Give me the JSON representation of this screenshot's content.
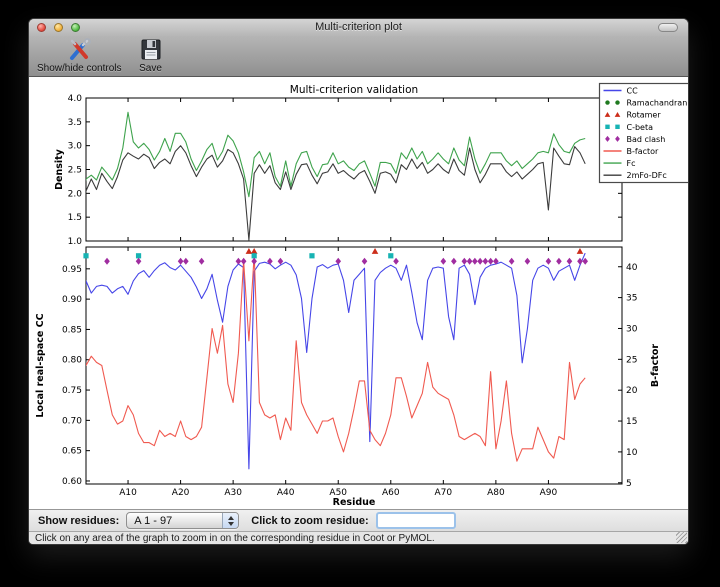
{
  "window": {
    "title": "Multi-criterion plot"
  },
  "toolbar": {
    "items": [
      {
        "label": "Show/hide controls",
        "icon": "tools-icon"
      },
      {
        "label": "Save",
        "icon": "save-icon"
      }
    ]
  },
  "controls": {
    "show_residues_label": "Show residues:",
    "range_selector_value": "A  1 - 97",
    "zoom_label": "Click to zoom residue:",
    "zoom_input_value": ""
  },
  "status": {
    "text": "Click on any area of the graph to zoom in on the corresponding residue in Coot or PyMOL."
  },
  "chart_data": {
    "type": "line",
    "title": "Multi-criterion validation",
    "x": {
      "label": "Residue",
      "lim": [
        2,
        104
      ],
      "ticks": [
        [
          10,
          "A10"
        ],
        [
          20,
          "A20"
        ],
        [
          30,
          "A30"
        ],
        [
          40,
          "A40"
        ],
        [
          50,
          "A50"
        ],
        [
          60,
          "A60"
        ],
        [
          70,
          "A70"
        ],
        [
          80,
          "A80"
        ],
        [
          90,
          "A90"
        ]
      ],
      "start_residue": 1
    },
    "top_plot": {
      "ylabel": "Density",
      "ylim": [
        1.0,
        4.0
      ],
      "yticks": [
        [
          1.0,
          "1.0"
        ],
        [
          1.5,
          "1.5"
        ],
        [
          2.0,
          "2.0"
        ],
        [
          2.5,
          "2.5"
        ],
        [
          3.0,
          "3.0"
        ],
        [
          3.5,
          "3.5"
        ],
        [
          4.0,
          "4.0"
        ]
      ],
      "series": [
        {
          "name": "Fc",
          "color": "#3fa34d",
          "values": [
            1.75,
            2.3,
            2.38,
            2.28,
            2.55,
            2.42,
            2.28,
            2.52,
            2.95,
            3.7,
            3.08,
            2.95,
            3.05,
            2.92,
            2.7,
            2.88,
            3.15,
            2.88,
            3.26,
            3.26,
            3.08,
            2.72,
            2.48,
            2.68,
            2.92,
            3.05,
            2.7,
            2.88,
            3.22,
            3.1,
            2.85,
            2.45,
            1.93,
            2.75,
            2.88,
            2.62,
            2.85,
            2.35,
            2.15,
            2.68,
            2.15,
            2.62,
            2.85,
            2.88,
            2.55,
            2.35,
            2.6,
            2.62,
            2.85,
            2.62,
            2.68,
            2.55,
            2.48,
            2.62,
            2.68,
            2.42,
            2.15,
            2.65,
            2.65,
            2.62,
            2.42,
            2.85,
            2.72,
            2.95,
            2.72,
            2.88,
            2.62,
            2.72,
            2.85,
            2.72,
            2.62,
            2.95,
            2.7,
            2.58,
            3.18,
            2.72,
            2.42,
            2.62,
            2.85,
            2.85,
            2.85,
            2.68,
            2.58,
            2.68,
            2.52,
            2.62,
            2.72,
            2.85,
            2.88,
            2.85,
            3.25,
            3.02,
            2.88,
            2.85,
            3.05,
            3.12,
            3.15
          ]
        },
        {
          "name": "2mFo-DFc",
          "color": "#3c3c3c",
          "values": [
            1.3,
            2.05,
            2.3,
            2.08,
            2.42,
            2.25,
            2.1,
            2.35,
            2.7,
            2.85,
            2.78,
            2.72,
            2.82,
            2.75,
            2.52,
            2.65,
            2.72,
            2.62,
            2.88,
            3.0,
            2.85,
            2.58,
            2.35,
            2.55,
            2.72,
            2.8,
            2.55,
            2.68,
            2.92,
            2.85,
            2.62,
            2.3,
            1.02,
            2.42,
            2.6,
            2.42,
            2.58,
            2.22,
            2.08,
            2.45,
            2.08,
            2.4,
            2.6,
            2.62,
            2.38,
            2.2,
            2.42,
            2.45,
            2.62,
            2.42,
            2.48,
            2.38,
            2.3,
            2.42,
            2.48,
            2.25,
            2.0,
            2.42,
            2.45,
            2.4,
            2.22,
            2.6,
            2.5,
            2.72,
            2.52,
            2.65,
            2.42,
            2.5,
            2.62,
            2.5,
            2.42,
            2.72,
            2.48,
            2.38,
            2.95,
            2.5,
            2.22,
            2.4,
            2.62,
            2.62,
            2.62,
            2.45,
            2.35,
            2.45,
            2.3,
            2.4,
            2.5,
            2.62,
            2.65,
            1.65,
            2.95,
            2.78,
            2.62,
            2.6,
            2.98,
            2.85,
            2.62
          ]
        }
      ]
    },
    "bottom_plot": {
      "ylabel_left": "Local real-space CC",
      "ylim_left": [
        0.595,
        0.986
      ],
      "yticks_left": [
        [
          0.6,
          "0.60"
        ],
        [
          0.65,
          "0.65"
        ],
        [
          0.7,
          "0.70"
        ],
        [
          0.75,
          "0.75"
        ],
        [
          0.8,
          "0.80"
        ],
        [
          0.85,
          "0.85"
        ],
        [
          0.9,
          "0.90"
        ],
        [
          0.95,
          "0.95"
        ]
      ],
      "ylabel_right": "B-factor",
      "ylim_right": [
        4.8,
        43.2
      ],
      "yticks_right": [
        [
          5,
          "5"
        ],
        [
          10,
          "10"
        ],
        [
          15,
          "15"
        ],
        [
          20,
          "20"
        ],
        [
          25,
          "25"
        ],
        [
          30,
          "30"
        ],
        [
          35,
          "35"
        ],
        [
          40,
          "40"
        ]
      ],
      "series": [
        {
          "name": "CC",
          "axis": "left",
          "color": "#4646e8",
          "values": [
            0.842,
            0.93,
            0.91,
            0.921,
            0.923,
            0.921,
            0.91,
            0.917,
            0.921,
            0.908,
            0.93,
            0.942,
            0.947,
            0.936,
            0.947,
            0.956,
            0.96,
            0.952,
            0.948,
            0.956,
            0.946,
            0.936,
            0.92,
            0.901,
            0.917,
            0.941,
            0.898,
            0.862,
            0.921,
            0.948,
            0.958,
            0.952,
            0.62,
            0.946,
            0.959,
            0.961,
            0.958,
            0.95,
            0.956,
            0.961,
            0.956,
            0.94,
            0.901,
            0.812,
            0.901,
            0.953,
            0.957,
            0.951,
            0.956,
            0.958,
            0.931,
            0.878,
            0.931,
            0.941,
            0.951,
            0.665,
            0.931,
            0.944,
            0.951,
            0.956,
            0.951,
            0.931,
            0.956,
            0.911,
            0.861,
            0.833,
            0.931,
            0.951,
            0.953,
            0.951,
            0.871,
            0.833,
            0.951,
            0.956,
            0.941,
            0.891,
            0.936,
            0.951,
            0.956,
            0.958,
            0.961,
            0.956,
            0.951,
            0.906,
            0.795,
            0.851,
            0.931,
            0.951,
            0.956,
            0.951,
            0.931,
            0.946,
            0.951,
            0.956,
            0.931,
            0.956,
            0.976
          ]
        },
        {
          "name": "B-factor",
          "axis": "right",
          "color": "#f05a50",
          "values": [
            31,
            24,
            25.5,
            24.5,
            24,
            20,
            16,
            14.5,
            15,
            17.5,
            16,
            13,
            11.5,
            11.5,
            11,
            13.5,
            12.5,
            13,
            12.5,
            15,
            12.5,
            12,
            12.5,
            14,
            22,
            30,
            26,
            30.5,
            21,
            18,
            26,
            41,
            28,
            42,
            18,
            16,
            15.5,
            16,
            12,
            15.5,
            13.5,
            28,
            18,
            16,
            14.5,
            13,
            15,
            15,
            15.5,
            12.5,
            10,
            13,
            17,
            21.5,
            21.5,
            13.5,
            12,
            11,
            13,
            16,
            22,
            22,
            19,
            15.5,
            17.5,
            19.5,
            24.5,
            20.5,
            19.5,
            19,
            18.5,
            16,
            12.5,
            12,
            12.5,
            13,
            12.5,
            11,
            23,
            10.5,
            15,
            21.5,
            13,
            8.5,
            10.5,
            10.5,
            10.5,
            14,
            12,
            10,
            9,
            12.5,
            12,
            24.5,
            18.5,
            21,
            22
          ]
        }
      ],
      "outlier_markers": [
        {
          "name": "Ramachandran",
          "shape": "circle",
          "color": "#1f7a1f",
          "y": 0.9715,
          "residues": []
        },
        {
          "name": "Rotamer",
          "shape": "triangle",
          "color": "#cc2d1a",
          "y": 0.979,
          "residues": [
            33,
            34,
            57,
            96
          ]
        },
        {
          "name": "C-beta",
          "shape": "square",
          "color": "#17b3b3",
          "y": 0.9715,
          "residues": [
            2,
            12,
            34,
            45,
            60
          ]
        },
        {
          "name": "Bad clash",
          "shape": "diamond",
          "color": "#a02da0",
          "y": 0.9625,
          "residues": [
            6,
            12,
            20,
            21,
            24,
            31,
            32,
            34,
            37,
            39,
            50,
            55,
            61,
            70,
            72,
            74,
            75,
            76,
            77,
            78,
            79,
            80,
            83,
            86,
            90,
            92,
            94,
            96,
            97
          ]
        }
      ]
    },
    "legend": {
      "position": "upper right",
      "entries": [
        {
          "label": "CC",
          "type": "line",
          "color": "#4646e8"
        },
        {
          "label": "Ramachandran",
          "type": "circle",
          "color": "#1f7a1f"
        },
        {
          "label": "Rotamer",
          "type": "triangle",
          "color": "#cc2d1a"
        },
        {
          "label": "C-beta",
          "type": "square",
          "color": "#17b3b3"
        },
        {
          "label": "Bad clash",
          "type": "diamond",
          "color": "#a02da0"
        },
        {
          "label": "B-factor",
          "type": "line",
          "color": "#f05a50"
        },
        {
          "label": "Fc",
          "type": "line",
          "color": "#3fa34d"
        },
        {
          "label": "2mFo-DFc",
          "type": "line",
          "color": "#3c3c3c"
        }
      ]
    }
  }
}
